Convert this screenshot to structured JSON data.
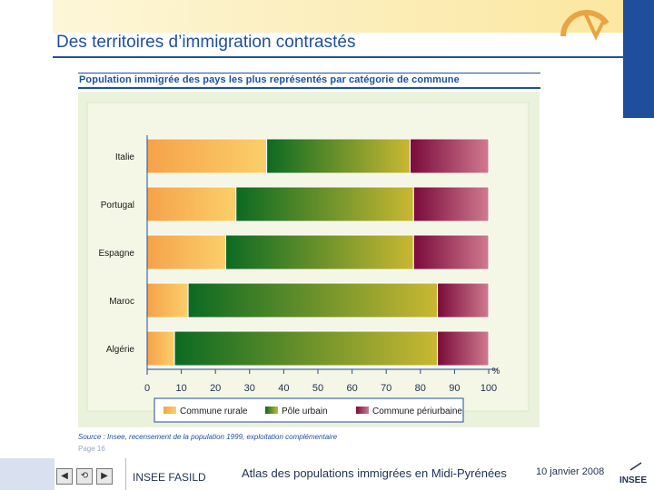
{
  "page": {
    "title": "Des territoires d’immigration contrastés",
    "page_number": "Page 16"
  },
  "footer": {
    "organization": "INSEE FASILD",
    "atlas_title": "Atlas des populations immigrées en Midi-Pyrénées",
    "date": "10 janvier 2008",
    "logo_text": "INSEE",
    "nav": [
      "◀",
      "⟲",
      "▶"
    ]
  },
  "colors": {
    "primary": "#1f4f9c",
    "panel": "#eaf2dc"
  },
  "chart_data": {
    "type": "bar",
    "orientation": "horizontal",
    "stacked": true,
    "title": "Population immigrée des pays les plus représentés par catégorie de commune",
    "source": "Source : Insee, recensement de la population 1999, exploitation complémentaire",
    "categories": [
      "Italie",
      "Portugal",
      "Espagne",
      "Maroc",
      "Algérie"
    ],
    "series": [
      {
        "name": "Commune rurale",
        "values": [
          35,
          26,
          23,
          12,
          8
        ]
      },
      {
        "name": "Pôle urbain",
        "values": [
          42,
          52,
          55,
          73,
          77
        ]
      },
      {
        "name": "Commune périurbaine",
        "values": [
          23,
          22,
          22,
          15,
          15
        ]
      }
    ],
    "xlim": [
      0,
      100
    ],
    "xticks": [
      "0",
      "10",
      "20",
      "30",
      "40",
      "50",
      "60",
      "70",
      "80",
      "90",
      "100"
    ],
    "unit_label": "%",
    "legend": [
      "Commune rurale",
      "Pôle urbain",
      "Commune périurbaine"
    ]
  }
}
